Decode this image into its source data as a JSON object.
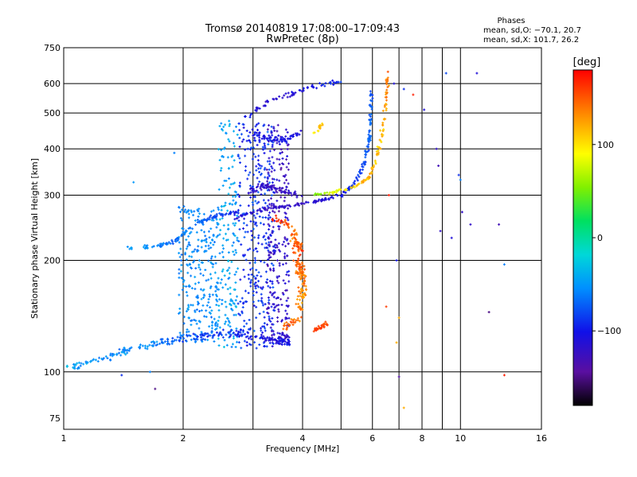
{
  "chart_data": {
    "type": "scatter",
    "title": "Tromsø 20140819 17:08:00–17:09:43",
    "subtitle": "RwPretec (8p)",
    "xlabel": "Frequency [MHz]",
    "ylabel": "Stationary phase Virtual Height [km]",
    "x_scale": "log",
    "y_scale": "log",
    "xlim": [
      1,
      16
    ],
    "ylim": [
      70,
      750
    ],
    "x_ticks": [
      1,
      2,
      4,
      6,
      8,
      10,
      16
    ],
    "x_tick_labels": [
      "1",
      "2",
      "4",
      "6",
      "8",
      "10",
      "16"
    ],
    "x_minor_lines": [
      3,
      5,
      7,
      9
    ],
    "y_ticks": [
      75,
      100,
      200,
      300,
      400,
      500,
      600,
      750
    ],
    "y_tick_labels": [
      "75",
      "100",
      "200",
      "300",
      "400",
      "500",
      "600",
      "750"
    ],
    "grid": true,
    "colorbar": {
      "label": "[deg]",
      "range": [
        -180,
        180
      ],
      "ticks": [
        100,
        0,
        -100
      ],
      "tick_labels": [
        "100",
        "0",
        "−100"
      ],
      "colormap": "rainbow"
    },
    "stats": {
      "heading": "Phases",
      "o_line": "mean, sd,O: −70.1, 20.7",
      "x_line": "mean, sd,X: 101.7, 26.2"
    },
    "clusters": [
      {
        "points": [
          [
            1.0,
            102,
            -40
          ],
          [
            1.3,
            110,
            -60
          ],
          [
            1.6,
            118,
            -50
          ],
          [
            1.9,
            122,
            -70
          ],
          [
            2.2,
            125,
            -80
          ],
          [
            2.6,
            128,
            -90
          ],
          [
            3.0,
            125,
            -100
          ],
          [
            3.4,
            122,
            -110
          ],
          [
            3.7,
            120,
            -100
          ]
        ],
        "n": 260,
        "spread": 0.035,
        "jitter": 25
      },
      {
        "points": [
          [
            1.45,
            215,
            -50
          ],
          [
            1.7,
            218,
            -60
          ],
          [
            1.9,
            225,
            -70
          ],
          [
            2.05,
            240,
            -60
          ],
          [
            2.2,
            255,
            -70
          ],
          [
            2.4,
            262,
            -80
          ],
          [
            2.6,
            268,
            -90
          ],
          [
            2.8,
            270,
            -100
          ]
        ],
        "n": 110,
        "spread": 0.02,
        "jitter": 15
      },
      {
        "points": [
          [
            2.7,
            260,
            -110
          ],
          [
            3.2,
            275,
            -120
          ],
          [
            3.8,
            282,
            -120
          ],
          [
            4.4,
            290,
            -115
          ],
          [
            5.0,
            300,
            -100
          ],
          [
            5.4,
            320,
            -90
          ],
          [
            5.75,
            370,
            -80
          ],
          [
            5.9,
            430,
            -70
          ],
          [
            5.95,
            500,
            -70
          ],
          [
            5.98,
            570,
            -80
          ]
        ],
        "n": 200,
        "spread": 0.015,
        "jitter": 15
      },
      {
        "points": [
          [
            2.9,
            305,
            -120
          ],
          [
            3.2,
            320,
            -120
          ],
          [
            3.5,
            310,
            -125
          ],
          [
            3.9,
            300,
            -120
          ]
        ],
        "n": 80,
        "spread": 0.03,
        "jitter": 15
      },
      {
        "points": [
          [
            3.0,
            440,
            -100
          ],
          [
            3.3,
            430,
            -110
          ],
          [
            3.6,
            420,
            -100
          ],
          [
            3.9,
            440,
            -110
          ]
        ],
        "n": 60,
        "spread": 0.03,
        "jitter": 15
      },
      {
        "points": [
          [
            2.9,
            490,
            -100
          ],
          [
            3.3,
            540,
            -120
          ],
          [
            3.8,
            565,
            -110
          ],
          [
            4.4,
            595,
            -100
          ],
          [
            5.0,
            610,
            -90
          ]
        ],
        "n": 70,
        "spread": 0.02,
        "jitter": 15
      },
      {
        "points": [
          [
            4.2,
            300,
            60
          ],
          [
            4.8,
            305,
            80
          ],
          [
            5.4,
            315,
            110
          ],
          [
            5.9,
            335,
            120
          ],
          [
            6.2,
            390,
            110
          ],
          [
            6.4,
            460,
            120
          ],
          [
            6.5,
            540,
            130
          ],
          [
            6.55,
            640,
            140
          ]
        ],
        "n": 130,
        "spread": 0.015,
        "jitter": 25
      },
      {
        "points": [
          [
            3.6,
            130,
            150
          ],
          [
            3.9,
            140,
            140
          ],
          [
            4.0,
            160,
            130
          ],
          [
            4.0,
            180,
            140
          ],
          [
            3.9,
            200,
            150
          ],
          [
            3.8,
            240,
            140
          ]
        ],
        "n": 150,
        "spread": 0.04,
        "jitter": 30
      },
      {
        "points": [
          [
            3.4,
            260,
            170
          ],
          [
            3.7,
            250,
            150
          ],
          [
            3.9,
            220,
            150
          ],
          [
            4.0,
            210,
            160
          ]
        ],
        "n": 50,
        "spread": 0.04,
        "jitter": 30
      },
      {
        "points": [
          [
            4.3,
            130,
            160
          ],
          [
            4.6,
            135,
            150
          ]
        ],
        "n": 30,
        "spread": 0.02,
        "jitter": 20
      },
      {
        "points": [
          [
            4.3,
            440,
            100
          ],
          [
            4.5,
            470,
            120
          ]
        ],
        "n": 15,
        "spread": 0.02,
        "jitter": 20
      }
    ],
    "vertical_bands": [
      {
        "x": [
          1.95,
          2.45
        ],
        "y": [
          120,
          280
        ],
        "n": 260,
        "value": -55,
        "jitter": 20
      },
      {
        "x": [
          2.45,
          2.75
        ],
        "y": [
          115,
          480
        ],
        "n": 180,
        "value": -45,
        "jitter": 25
      },
      {
        "x": [
          2.75,
          3.4
        ],
        "y": [
          115,
          470
        ],
        "n": 360,
        "value": -90,
        "jitter": 30
      },
      {
        "x": [
          3.25,
          3.7
        ],
        "y": [
          120,
          470
        ],
        "n": 240,
        "value": -120,
        "jitter": 30
      }
    ],
    "scattered": [
      [
        6.8,
        600,
        -110
      ],
      [
        6.9,
        200,
        -100
      ],
      [
        7.2,
        580,
        -90
      ],
      [
        7.6,
        560,
        170
      ],
      [
        8.1,
        510,
        -110
      ],
      [
        8.7,
        400,
        -120
      ],
      [
        8.8,
        360,
        -130
      ],
      [
        9.2,
        640,
        -80
      ],
      [
        9.9,
        340,
        -90
      ],
      [
        10.0,
        330,
        -60
      ],
      [
        10.1,
        270,
        -120
      ],
      [
        10.6,
        250,
        -120
      ],
      [
        11.0,
        640,
        -110
      ],
      [
        12.5,
        250,
        -130
      ],
      [
        12.9,
        195,
        -60
      ],
      [
        12.9,
        98,
        170
      ],
      [
        11.8,
        145,
        -150
      ],
      [
        9.5,
        230,
        -110
      ],
      [
        8.9,
        240,
        -120
      ],
      [
        7.0,
        97,
        -140
      ],
      [
        6.6,
        300,
        170
      ],
      [
        6.5,
        150,
        160
      ],
      [
        7.0,
        140,
        120
      ],
      [
        6.9,
        120,
        120
      ],
      [
        7.2,
        80,
        120
      ],
      [
        1.7,
        90,
        -150
      ],
      [
        1.5,
        325,
        -50
      ],
      [
        1.65,
        100,
        -60
      ],
      [
        1.9,
        390,
        -60
      ],
      [
        1.4,
        98,
        -90
      ]
    ]
  }
}
